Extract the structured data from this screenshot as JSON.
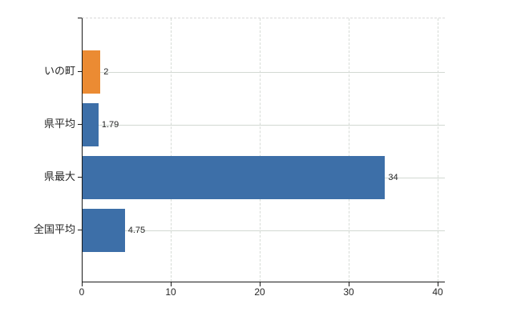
{
  "chart_data": {
    "type": "bar",
    "orientation": "horizontal",
    "title": "",
    "xlabel": "",
    "ylabel": "",
    "categories": [
      "いの町",
      "県平均",
      "県最大",
      "全国平均"
    ],
    "values": [
      2,
      1.79,
      34,
      4.75
    ],
    "value_labels": [
      "2",
      "1.79",
      "34",
      "4.75"
    ],
    "bar_colors": [
      "#EB8B33",
      "#3D6FA8",
      "#3D6FA8",
      "#3D6FA8"
    ],
    "xlim": [
      0,
      40
    ],
    "x_ticks": [
      0,
      10,
      20,
      30,
      40
    ],
    "grid": true,
    "legend_position": "none",
    "colors": {
      "highlight_orange": "#EB8B33",
      "series_blue": "#3D6FA8",
      "grid_line": "#d2d9d2",
      "axis_line": "#1a1a1a",
      "text": "#262626",
      "background": "#ffffff"
    }
  }
}
